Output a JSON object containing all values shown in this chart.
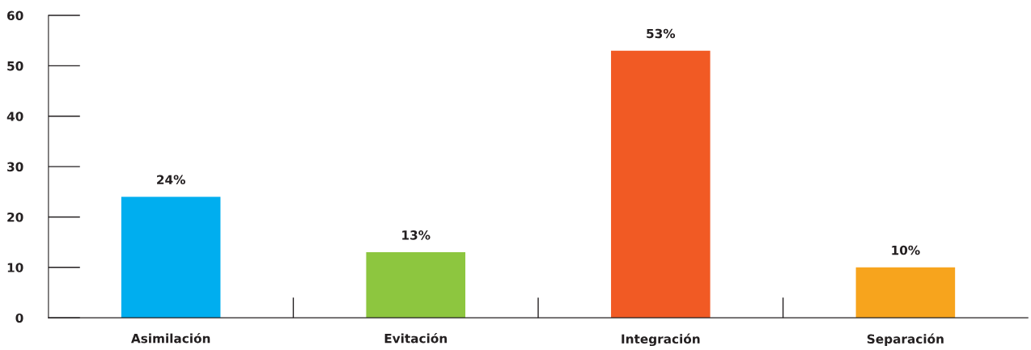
{
  "chart_data": {
    "type": "bar",
    "categories": [
      "Asimilación",
      "Evitación",
      "Integración",
      "Separación"
    ],
    "values": [
      24,
      13,
      53,
      10
    ],
    "colors": [
      "#00aeef",
      "#8dc63f",
      "#f15a24",
      "#f7a41d"
    ],
    "value_labels": [
      "24%",
      "13%",
      "53%",
      "10%"
    ],
    "ylim": [
      0,
      60
    ],
    "yticks": [
      0,
      10,
      20,
      30,
      40,
      50,
      60
    ],
    "grid": false,
    "legend": false
  }
}
